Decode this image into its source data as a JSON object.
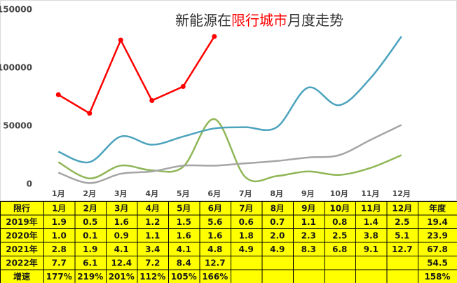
{
  "chart_data": {
    "type": "line",
    "title_parts": [
      {
        "text": "新能源在",
        "color": "#333333"
      },
      {
        "text": "限行城市",
        "color": "#ff0000"
      },
      {
        "text": "月度走势",
        "color": "#333333"
      }
    ],
    "categories": [
      "1月",
      "2月",
      "3月",
      "4月",
      "5月",
      "6月",
      "7月",
      "8月",
      "9月",
      "10月",
      "11月",
      "12月"
    ],
    "series": [
      {
        "color": "#8fb656",
        "smooth": true,
        "markers": false,
        "values": [
          19000,
          5000,
          16000,
          12000,
          15000,
          56000,
          6000,
          7000,
          11000,
          8000,
          14000,
          25000
        ]
      },
      {
        "color": "#a5a5a5",
        "smooth": true,
        "markers": false,
        "values": [
          10000,
          1000,
          9000,
          11000,
          16000,
          16000,
          18000,
          20000,
          23000,
          25000,
          38000,
          51000
        ]
      },
      {
        "color": "#4ba3bd",
        "smooth": true,
        "markers": false,
        "values": [
          28000,
          19000,
          41000,
          34000,
          41000,
          48000,
          49000,
          49000,
          83000,
          68000,
          91000,
          127000
        ]
      },
      {
        "color": "#ff0000",
        "smooth": false,
        "markers": true,
        "values": [
          77000,
          61000,
          124000,
          72000,
          84000,
          127000,
          null,
          null,
          null,
          null,
          null,
          null
        ]
      }
    ],
    "ylim": [
      0,
      150000
    ],
    "yticks": [
      0,
      50000,
      100000,
      150000
    ],
    "grid": false
  },
  "table": {
    "header": [
      "限行",
      "1月",
      "2月",
      "3月",
      "4月",
      "5月",
      "6月",
      "7月",
      "8月",
      "9月",
      "10月",
      "11月",
      "12月",
      "年度"
    ],
    "rows": [
      [
        "2019年",
        1.9,
        0.5,
        1.6,
        1.2,
        1.5,
        5.6,
        0.6,
        0.7,
        1.1,
        0.8,
        1.4,
        2.5,
        19.4
      ],
      [
        "2020年",
        1.0,
        0.1,
        0.9,
        1.1,
        1.6,
        1.6,
        1.8,
        2.0,
        2.3,
        2.5,
        3.8,
        5.1,
        23.9
      ],
      [
        "2021年",
        2.8,
        1.9,
        4.1,
        3.4,
        4.1,
        4.8,
        4.9,
        4.9,
        8.3,
        6.8,
        9.1,
        12.7,
        67.8
      ],
      [
        "2022年",
        7.7,
        6.1,
        12.4,
        7.2,
        8.4,
        12.7,
        null,
        null,
        null,
        null,
        null,
        null,
        54.5
      ],
      [
        "增速",
        "177%",
        "219%",
        "201%",
        "112%",
        "105%",
        "166%",
        null,
        null,
        null,
        null,
        null,
        null,
        "158%"
      ]
    ]
  }
}
